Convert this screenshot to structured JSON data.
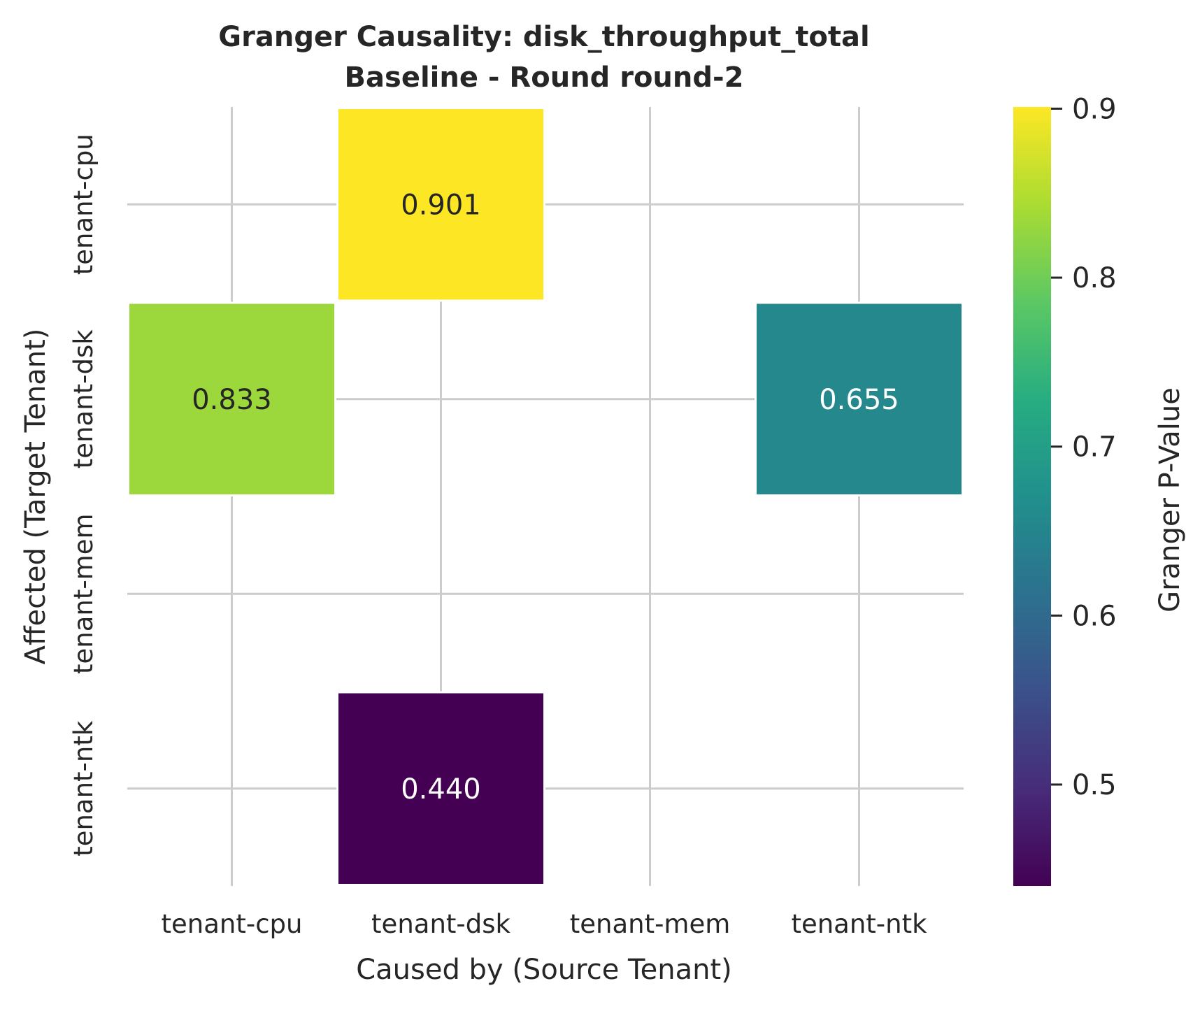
{
  "chart_data": {
    "type": "heatmap",
    "title": "Granger Causality: disk_throughput_total",
    "subtitle": "Baseline - Round round-2",
    "xlabel": "Caused by (Source Tenant)",
    "ylabel": "Affected (Target Tenant)",
    "x_categories": [
      "tenant-cpu",
      "tenant-dsk",
      "tenant-mem",
      "tenant-ntk"
    ],
    "y_categories": [
      "tenant-cpu",
      "tenant-dsk",
      "tenant-mem",
      "tenant-ntk"
    ],
    "cells": [
      {
        "x": "tenant-dsk",
        "y": "tenant-cpu",
        "value": 0.901,
        "label": "0.901"
      },
      {
        "x": "tenant-cpu",
        "y": "tenant-dsk",
        "value": 0.833,
        "label": "0.833"
      },
      {
        "x": "tenant-ntk",
        "y": "tenant-dsk",
        "value": 0.655,
        "label": "0.655"
      },
      {
        "x": "tenant-dsk",
        "y": "tenant-ntk",
        "value": 0.44,
        "label": "0.440"
      }
    ],
    "colorbar": {
      "label": "Granger P-Value",
      "colormap": "viridis",
      "range": [
        0.44,
        0.901
      ],
      "ticks": [
        0.5,
        0.6,
        0.7,
        0.8,
        0.9
      ],
      "tick_labels": [
        "0.5",
        "0.6",
        "0.7",
        "0.8",
        "0.9"
      ]
    },
    "grid": true,
    "colors": {
      "background": "#ffffff",
      "grid": "#cccccc",
      "text": "#262626",
      "annotation_light": "#ffffff",
      "annotation_dark": "#262626"
    }
  }
}
